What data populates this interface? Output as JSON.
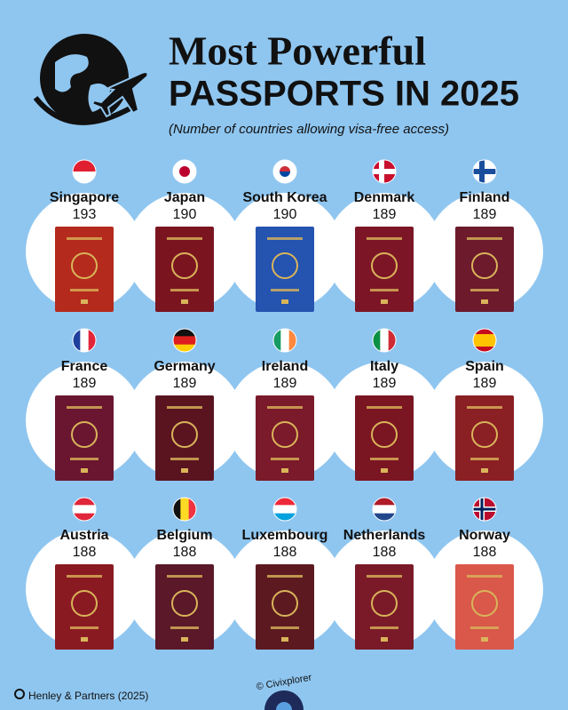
{
  "title": {
    "line1": "Most Powerful",
    "line2": "PASSPORTS IN 2025",
    "subtitle": "(Number of countries allowing visa-free access)"
  },
  "passports": [
    {
      "country": "Singapore",
      "value": 193
    },
    {
      "country": "Japan",
      "value": 190
    },
    {
      "country": "South Korea",
      "value": 190
    },
    {
      "country": "Denmark",
      "value": 189
    },
    {
      "country": "Finland",
      "value": 189
    },
    {
      "country": "France",
      "value": 189
    },
    {
      "country": "Germany",
      "value": 189
    },
    {
      "country": "Ireland",
      "value": 189
    },
    {
      "country": "Italy",
      "value": 189
    },
    {
      "country": "Spain",
      "value": 189
    },
    {
      "country": "Austria",
      "value": 188
    },
    {
      "country": "Belgium",
      "value": 188
    },
    {
      "country": "Luxembourg",
      "value": 188
    },
    {
      "country": "Netherlands",
      "value": 188
    },
    {
      "country": "Norway",
      "value": 188
    }
  ],
  "source": "Henley & Partners (2025)",
  "credit": "© Civixplorer"
}
